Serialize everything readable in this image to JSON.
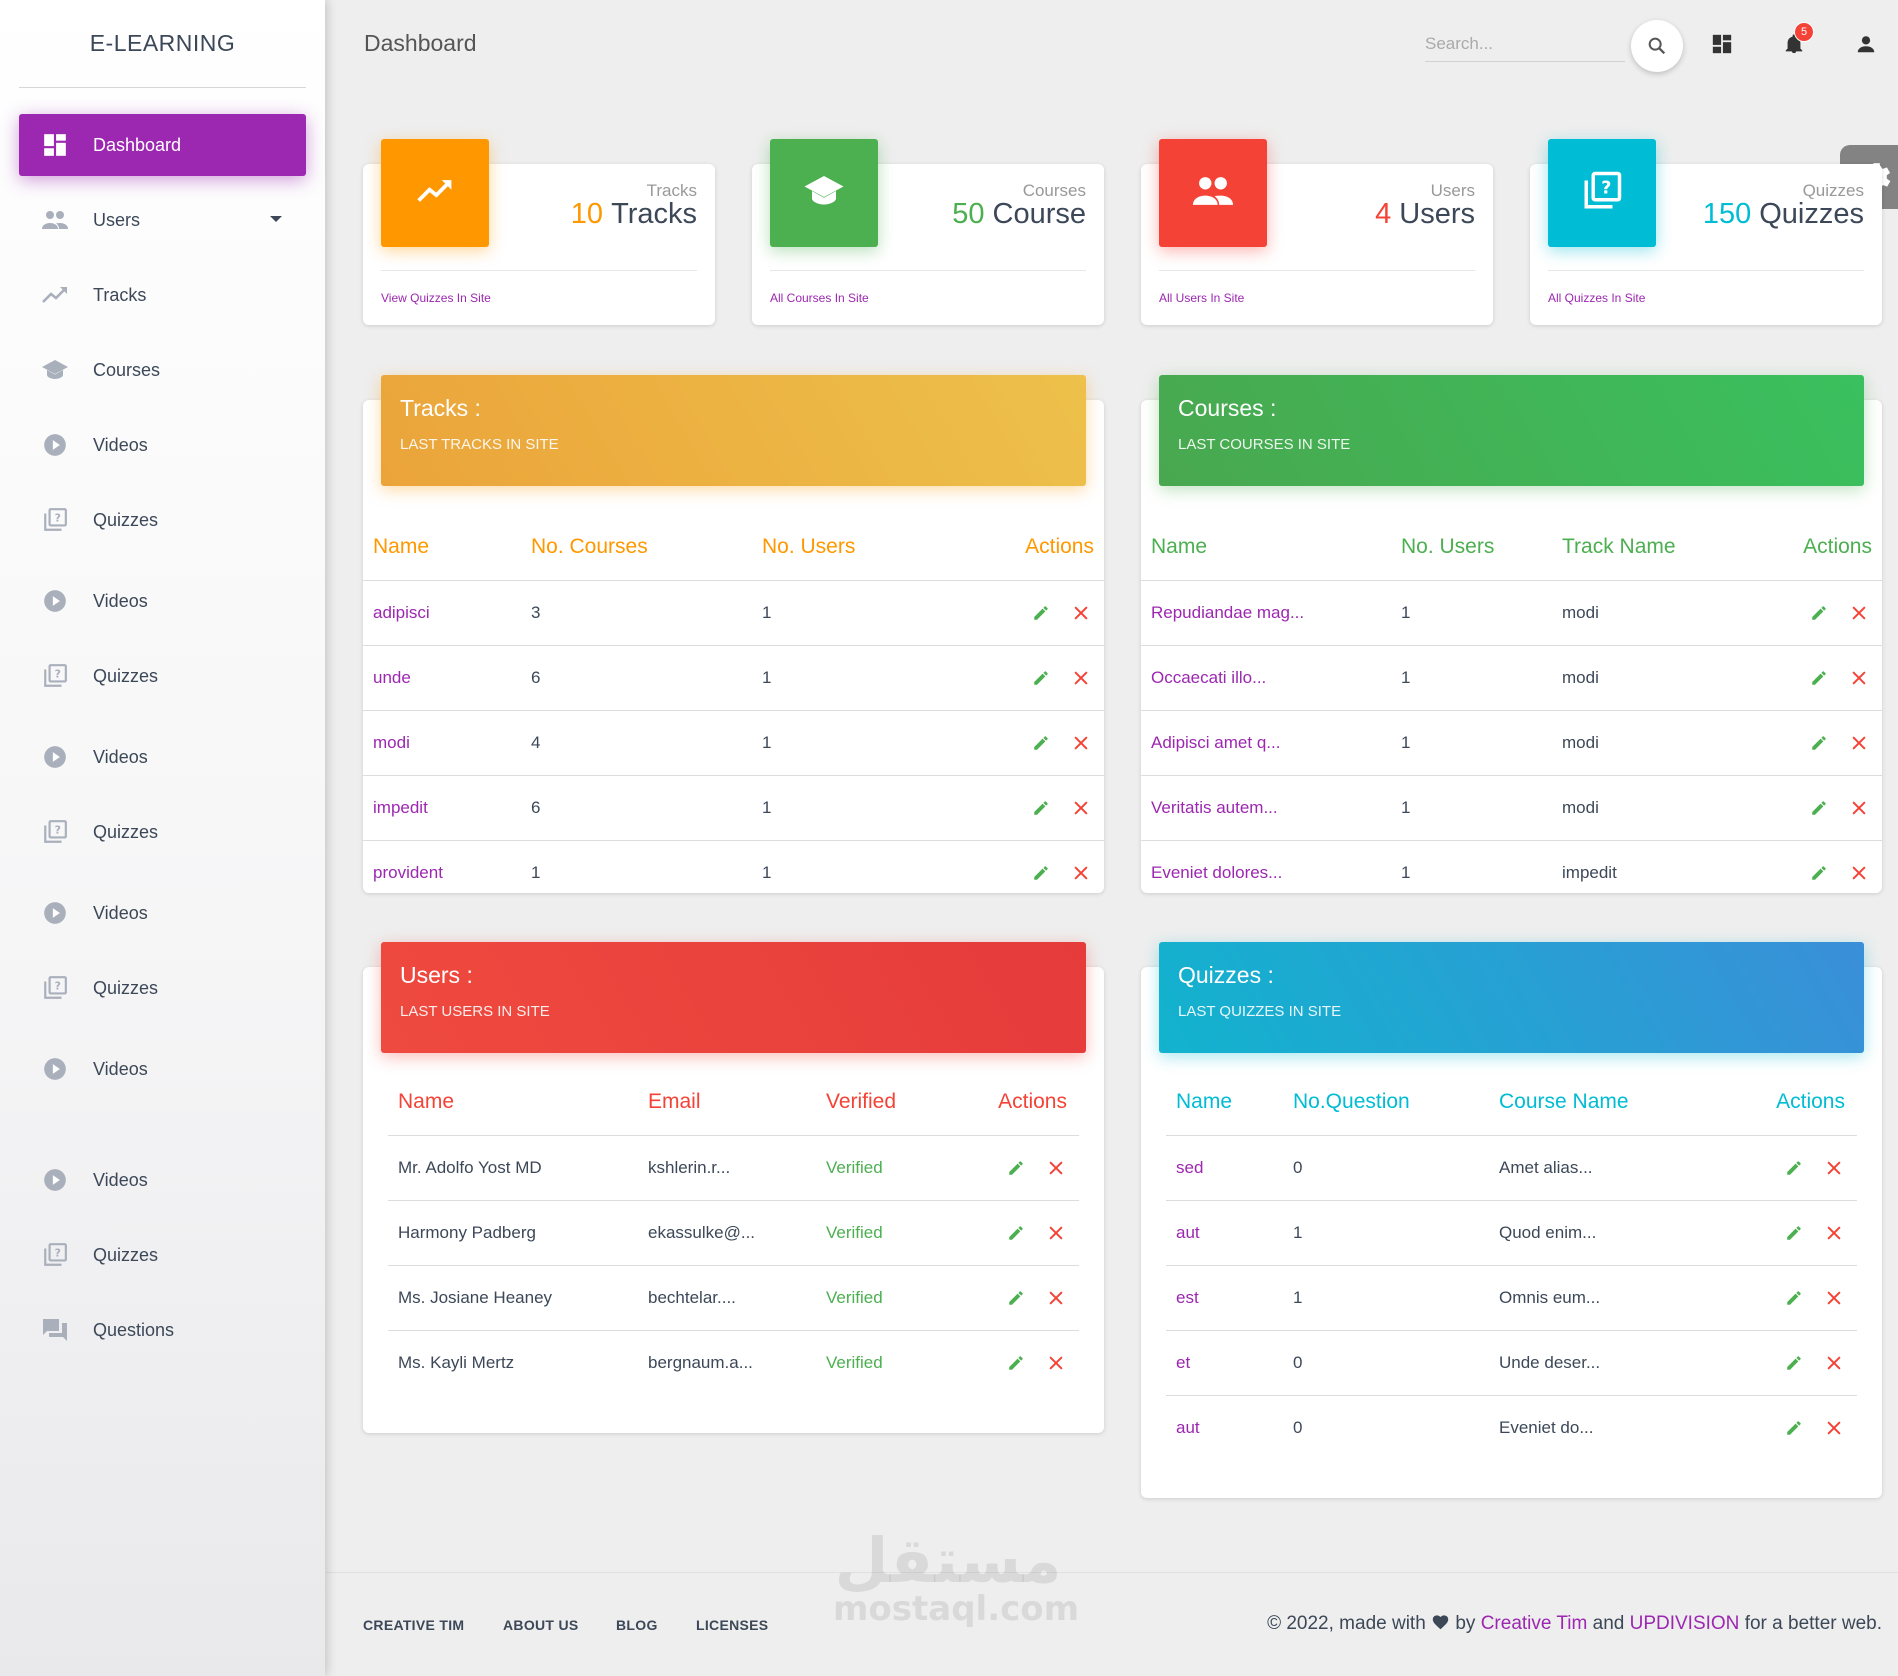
{
  "brand": "E-LEARNING",
  "page_title": "Dashboard",
  "search": {
    "placeholder": "Search..."
  },
  "notifications": {
    "count": "5"
  },
  "colors": {
    "accent": "#9c27b0",
    "orange": "#ff9800",
    "green": "#4caf50",
    "red": "#f44336",
    "cyan": "#00bcd4"
  },
  "sidebar": {
    "items": [
      {
        "label": "Dashboard",
        "icon": "dashboard-icon"
      },
      {
        "label": "Users",
        "icon": "users-icon"
      },
      {
        "label": "Tracks",
        "icon": "trending-icon"
      },
      {
        "label": "Courses",
        "icon": "school-icon"
      },
      {
        "label": "Videos",
        "icon": "play-icon"
      },
      {
        "label": "Quizzes",
        "icon": "quiz-icon"
      },
      {
        "label": "Videos",
        "icon": "play-icon"
      },
      {
        "label": "Quizzes",
        "icon": "quiz-icon"
      },
      {
        "label": "Videos",
        "icon": "play-icon"
      },
      {
        "label": "Quizzes",
        "icon": "quiz-icon"
      },
      {
        "label": "Videos",
        "icon": "play-icon"
      },
      {
        "label": "Quizzes",
        "icon": "quiz-icon"
      },
      {
        "label": "Videos",
        "icon": "play-icon"
      },
      {
        "label": "Videos",
        "icon": "play-icon"
      },
      {
        "label": "Quizzes",
        "icon": "quiz-icon"
      },
      {
        "label": "Questions",
        "icon": "forum-icon"
      }
    ]
  },
  "stats": [
    {
      "category": "Tracks",
      "number": "10",
      "unit": "Tracks",
      "footer": "View Quizzes In Site",
      "icon": "trending-up-icon",
      "color": "#ff9800"
    },
    {
      "category": "Courses",
      "number": "50",
      "unit": "Course",
      "footer": "All Courses In Site",
      "icon": "school-icon",
      "color": "#4caf50"
    },
    {
      "category": "Users",
      "number": "4",
      "unit": "Users",
      "footer": "All Users In Site",
      "icon": "group-icon",
      "color": "#f44336"
    },
    {
      "category": "Quizzes",
      "number": "150",
      "unit": "Quizzes",
      "footer": "All Quizzes In Site",
      "icon": "quiz-icon",
      "color": "#00bcd4"
    }
  ],
  "tracks_card": {
    "title": "Tracks :",
    "subtitle": "LAST TRACKS IN SITE",
    "headers": [
      "Name",
      "No. Courses",
      "No. Users",
      "Actions"
    ],
    "rows": [
      [
        "adipisci",
        "3",
        "1"
      ],
      [
        "unde",
        "6",
        "1"
      ],
      [
        "modi",
        "4",
        "1"
      ],
      [
        "impedit",
        "6",
        "1"
      ],
      [
        "provident",
        "1",
        "1"
      ]
    ]
  },
  "courses_card": {
    "title": "Courses :",
    "subtitle": "LAST COURSES IN SITE",
    "headers": [
      "Name",
      "No. Users",
      "Track Name",
      "Actions"
    ],
    "rows": [
      [
        "Repudiandae mag...",
        "1",
        "modi"
      ],
      [
        "Occaecati illo...",
        "1",
        "modi"
      ],
      [
        "Adipisci amet q...",
        "1",
        "modi"
      ],
      [
        "Veritatis autem...",
        "1",
        "modi"
      ],
      [
        "Eveniet dolores...",
        "1",
        "impedit"
      ]
    ]
  },
  "users_card": {
    "title": "Users :",
    "subtitle": "LAST USERS IN SITE",
    "headers": [
      "Name",
      "Email",
      "Verified",
      "Actions"
    ],
    "rows": [
      [
        "Mr. Adolfo Yost MD",
        "kshlerin.r...",
        "Verified"
      ],
      [
        "Harmony Padberg",
        "ekassulke@...",
        "Verified"
      ],
      [
        "Ms. Josiane Heaney",
        "bechtelar....",
        "Verified"
      ],
      [
        "Ms. Kayli Mertz",
        "bergnaum.a...",
        "Verified"
      ]
    ]
  },
  "quizzes_card": {
    "title": "Quizzes :",
    "subtitle": "LAST QUIZZES IN SITE",
    "headers": [
      "Name",
      "No.Question",
      "Course Name",
      "Actions"
    ],
    "rows": [
      [
        "sed",
        "0",
        "Amet alias..."
      ],
      [
        "aut",
        "1",
        "Quod enim..."
      ],
      [
        "est",
        "1",
        "Omnis eum..."
      ],
      [
        "et",
        "0",
        "Unde deser..."
      ],
      [
        "aut",
        "0",
        "Eveniet do..."
      ]
    ]
  },
  "footer": {
    "links": [
      "CREATIVE TIM",
      "ABOUT US",
      "BLOG",
      "LICENSES"
    ],
    "copy_pre": "© 2022, made with",
    "copy_by": "by",
    "link1": "Creative Tim",
    "copy_and": "and",
    "link2": "UPDIVISION",
    "copy_post": "for a better web."
  },
  "watermark": {
    "arabic": "مستقل",
    "latin": "mostaql.com"
  }
}
